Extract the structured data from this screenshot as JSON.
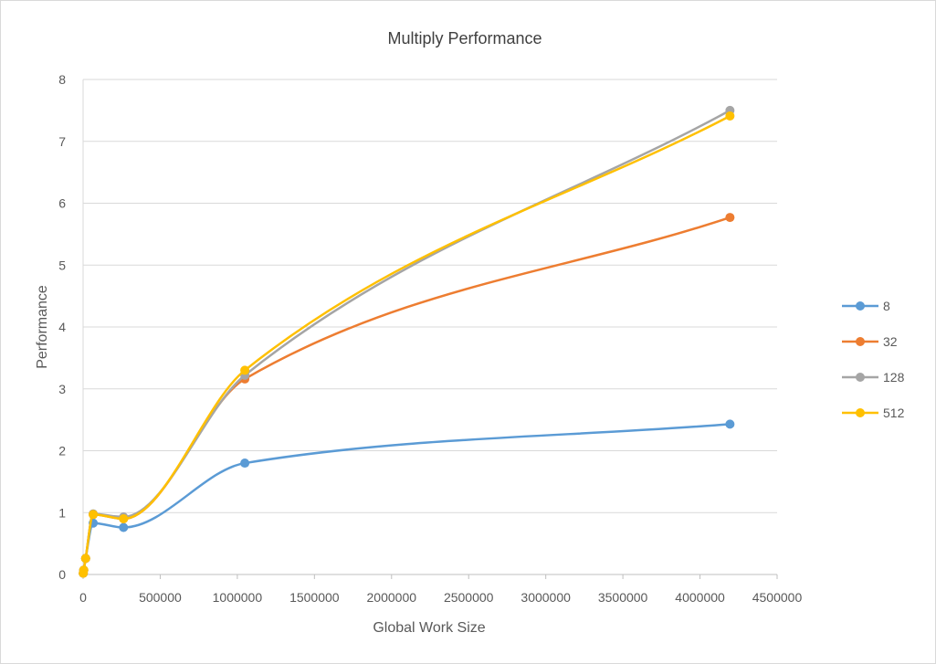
{
  "chart_data": {
    "type": "line",
    "title": "Multiply Performance",
    "xlabel": "Global Work Size",
    "ylabel": "Performance",
    "xlim": [
      0,
      4500000
    ],
    "ylim": [
      0,
      8
    ],
    "xticks": [
      0,
      500000,
      1000000,
      1500000,
      2000000,
      2500000,
      3000000,
      3500000,
      4000000,
      4500000
    ],
    "xtick_labels": [
      "0",
      "500000",
      "1000000",
      "1500000",
      "2000000",
      "2500000",
      "3000000",
      "3500000",
      "4000000",
      "4500000"
    ],
    "yticks": [
      0,
      1,
      2,
      3,
      4,
      5,
      6,
      7,
      8
    ],
    "ytick_labels": [
      "0",
      "1",
      "2",
      "3",
      "4",
      "5",
      "6",
      "7",
      "8"
    ],
    "grid": true,
    "legend_position": "right",
    "smooth": true,
    "x": [
      1024,
      4096,
      16384,
      65536,
      262144,
      1048576,
      4194304
    ],
    "series": [
      {
        "name": "8",
        "color": "#5b9bd5",
        "values": [
          0.02,
          0.07,
          0.26,
          0.83,
          0.76,
          1.8,
          2.43
        ]
      },
      {
        "name": "32",
        "color": "#ed7d31",
        "values": [
          0.02,
          0.07,
          0.26,
          0.97,
          0.9,
          3.16,
          5.77
        ]
      },
      {
        "name": "128",
        "color": "#a5a5a5",
        "values": [
          0.02,
          0.07,
          0.26,
          0.98,
          0.93,
          3.22,
          7.5
        ]
      },
      {
        "name": "512",
        "color": "#ffc000",
        "values": [
          0.02,
          0.07,
          0.26,
          0.97,
          0.9,
          3.3,
          7.41
        ]
      }
    ]
  }
}
